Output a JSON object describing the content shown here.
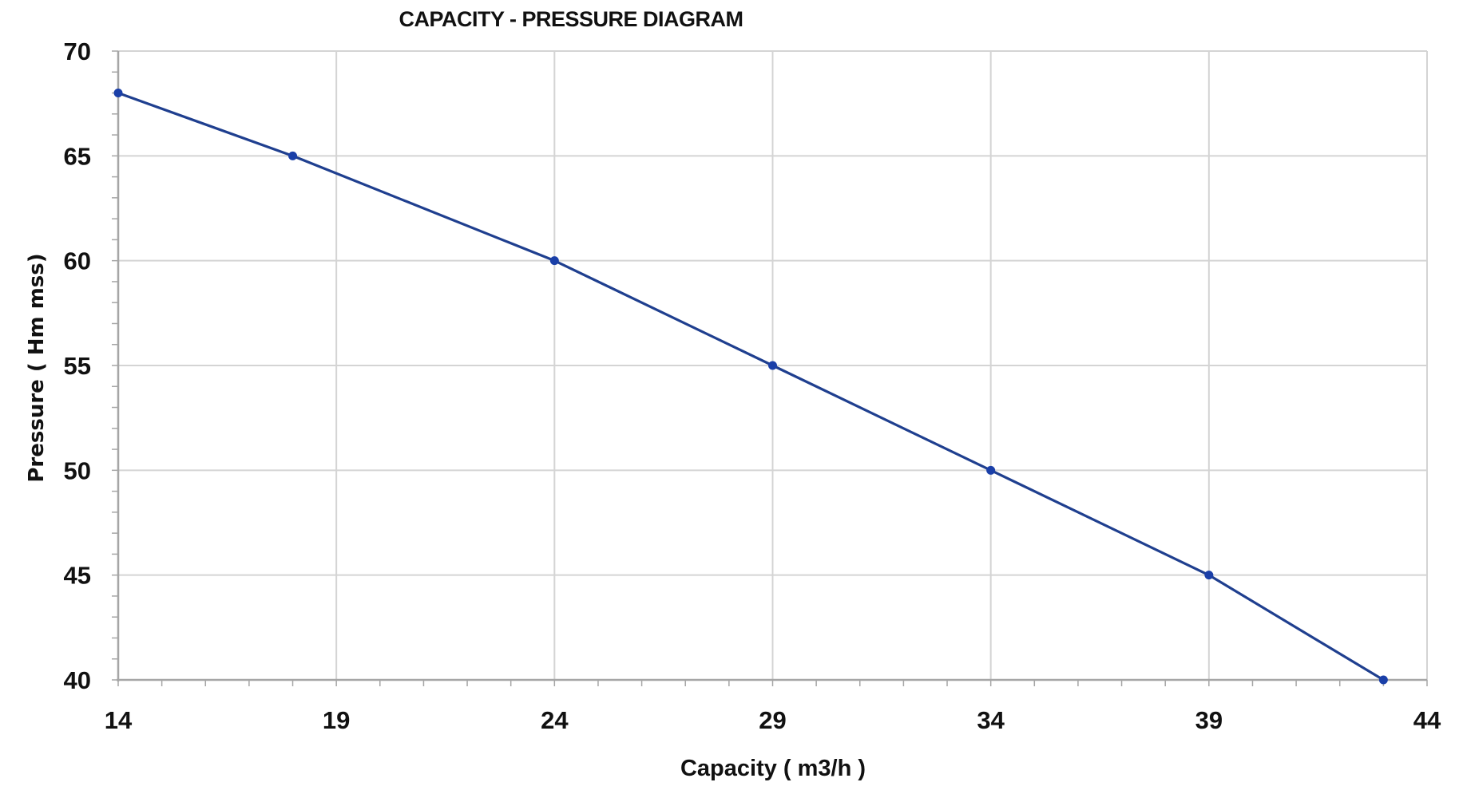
{
  "chart_data": {
    "type": "line",
    "title": "CAPACITY - PRESSURE DIAGRAM",
    "xlabel": "Capacity ( m3/h )",
    "ylabel": "Pressure ( Hm mss)",
    "xlim": [
      14,
      44
    ],
    "ylim": [
      40,
      70
    ],
    "x_ticks": [
      14,
      19,
      24,
      29,
      34,
      39,
      44
    ],
    "y_ticks": [
      40,
      45,
      50,
      55,
      60,
      65,
      70
    ],
    "x_minor_step": 1,
    "y_minor_step": 1,
    "grid": true,
    "legend": "none",
    "series": [
      {
        "name": "Capacity-Pressure",
        "color": "#1f3f8f",
        "marker_color": "#1a3fa8",
        "x": [
          14,
          18,
          24,
          29,
          34,
          39,
          43
        ],
        "y": [
          68,
          65,
          60,
          55,
          50,
          45,
          40
        ]
      }
    ]
  }
}
